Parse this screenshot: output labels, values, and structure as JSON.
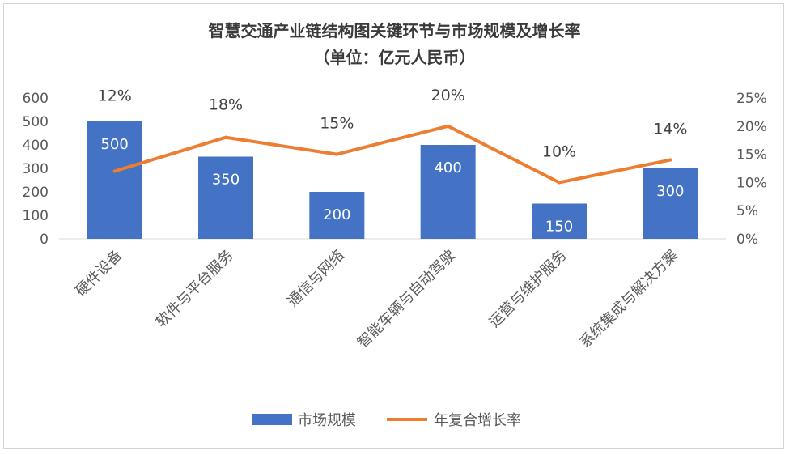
{
  "chart_data": {
    "type": "bar",
    "title": "智慧交通产业链结构图关键环节与市场规模及增长率",
    "subtitle": "（单位：亿元人民币）",
    "categories": [
      "硬件设备",
      "软件与平台服务",
      "通信与网络",
      "智能车辆与自动驾驶",
      "运营与维护服务",
      "系统集成与解决方案"
    ],
    "series": [
      {
        "name": "市场规模",
        "kind": "bar",
        "axis": "left",
        "color": "#4472C4",
        "values": [
          500,
          350,
          200,
          400,
          150,
          300
        ]
      },
      {
        "name": "年复合增长率",
        "kind": "line",
        "axis": "right",
        "color": "#ED7D31",
        "values": [
          12,
          18,
          15,
          20,
          10,
          14
        ]
      }
    ],
    "y_left": {
      "min": 0,
      "max": 600,
      "ticks": [
        "0",
        "100",
        "200",
        "300",
        "400",
        "500",
        "600"
      ]
    },
    "y_right": {
      "min": 0,
      "max": 25,
      "ticks": [
        "0%",
        "5%",
        "10%",
        "15%",
        "20%",
        "25%"
      ]
    },
    "bar_labels": [
      "500",
      "350",
      "200",
      "400",
      "150",
      "300"
    ],
    "line_labels": [
      "12%",
      "18%",
      "15%",
      "20%",
      "10%",
      "14%"
    ],
    "grid": false,
    "legend_position": "bottom"
  }
}
